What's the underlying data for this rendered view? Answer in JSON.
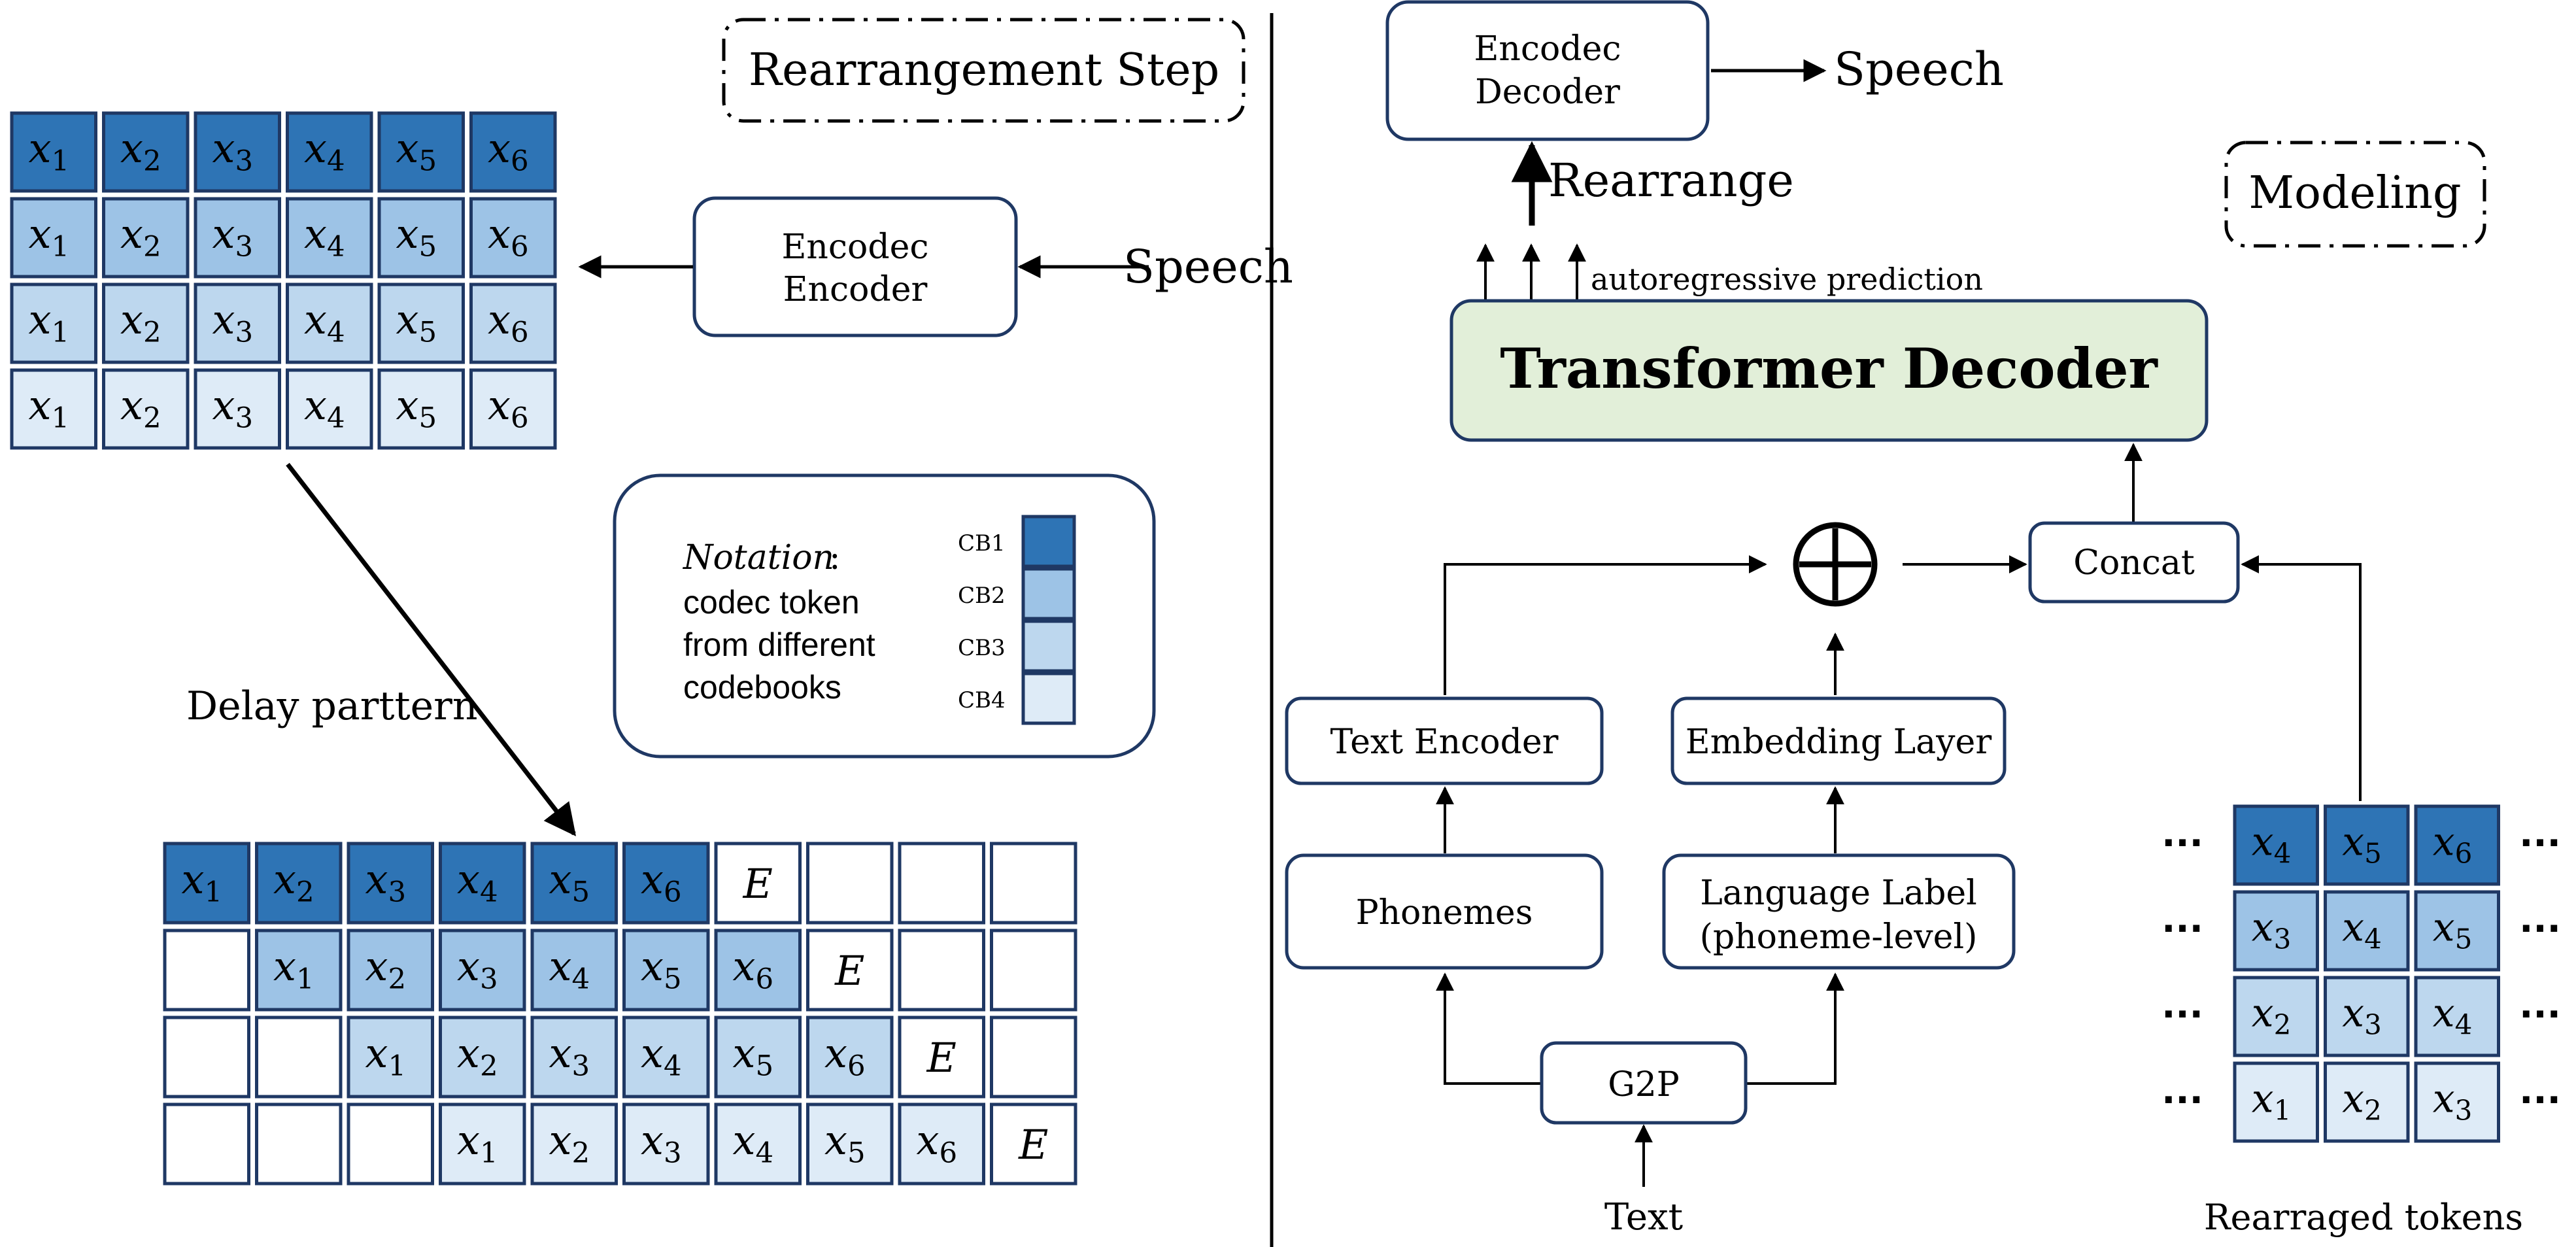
{
  "colors": {
    "cb1": "#2E74B5",
    "cb2": "#9DC3E6",
    "cb3": "#BDD7EE",
    "cb4": "#DEEBF7",
    "transformer_fill": "#E2EFD9",
    "stroke": "#1F3864",
    "line": "#000000",
    "empty": "#FFFFFF"
  },
  "left": {
    "step_label": "Rearrangement Step",
    "encoder_line1": "Encodec",
    "encoder_line2": "Encoder",
    "speech_label": "Speech",
    "delay_label": "Delay parttern",
    "grid_rows": [
      [
        "1",
        "2",
        "3",
        "4",
        "5",
        "6"
      ],
      [
        "1",
        "2",
        "3",
        "4",
        "5",
        "6"
      ],
      [
        "1",
        "2",
        "3",
        "4",
        "5",
        "6"
      ],
      [
        "1",
        "2",
        "3",
        "4",
        "5",
        "6"
      ]
    ],
    "delay_rows": [
      [
        "1",
        "2",
        "3",
        "4",
        "5",
        "6",
        "E",
        "",
        "",
        ""
      ],
      [
        "",
        "1",
        "2",
        "3",
        "4",
        "5",
        "6",
        "E",
        "",
        ""
      ],
      [
        "",
        "",
        "1",
        "2",
        "3",
        "4",
        "5",
        "6",
        "E",
        ""
      ],
      [
        "",
        "",
        "",
        "1",
        "2",
        "3",
        "4",
        "5",
        "6",
        "E"
      ]
    ],
    "notation": {
      "title": "Notation",
      "colon": ":",
      "line1": "codec token",
      "line2": "from different",
      "line3": "codebooks",
      "codebooks": [
        "CB1",
        "CB2",
        "CB3",
        "CB4"
      ]
    }
  },
  "right": {
    "modeling_label": "Modeling",
    "decoder_line1": "Encodec",
    "decoder_line2": "Decoder",
    "speech_label": "Speech",
    "rearrange_label": "Rearrange",
    "autoregressive_label": "autoregressive prediction",
    "transformer_label": "Transformer Decoder",
    "concat_label": "Concat",
    "text_encoder_label": "Text Encoder",
    "embedding_label": "Embedding Layer",
    "phonemes_label": "Phonemes",
    "lang_line1": "Language Label",
    "lang_line2": "(phoneme-level)",
    "g2p_label": "G2P",
    "text_label": "Text",
    "rearranged_label": "Rearraged tokens",
    "ellipsis": "···",
    "token_rows": [
      [
        "4",
        "5",
        "6"
      ],
      [
        "3",
        "4",
        "5"
      ],
      [
        "2",
        "3",
        "4"
      ],
      [
        "1",
        "2",
        "3"
      ]
    ]
  }
}
